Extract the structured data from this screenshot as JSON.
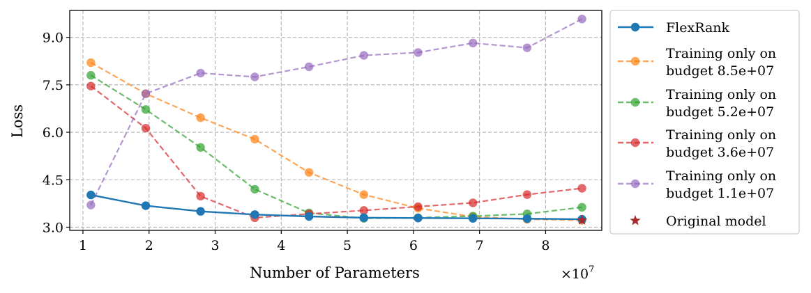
{
  "chart_data": {
    "type": "line",
    "xlabel": "Number of Parameters",
    "ylabel": "Loss",
    "x_multiplier_label": "×10^7",
    "x_multiplier_base": "×10",
    "x_multiplier_exp": "7",
    "xlim": [
      0.8,
      8.85
    ],
    "ylim": [
      2.9,
      9.85
    ],
    "xticks": [
      1,
      2,
      3,
      4,
      5,
      6,
      7,
      8
    ],
    "xtick_labels": [
      "1",
      "2",
      "3",
      "4",
      "5",
      "6",
      "7",
      "8"
    ],
    "yticks": [
      3.0,
      4.5,
      6.0,
      7.5,
      9.0
    ],
    "ytick_labels": [
      "3.0",
      "4.5",
      "6.0",
      "7.5",
      "9.0"
    ],
    "grid": true,
    "legend_position": "outside-right",
    "x": [
      1.12,
      1.95,
      2.78,
      3.6,
      4.42,
      5.25,
      6.07,
      6.9,
      7.72,
      8.55
    ],
    "series": [
      {
        "name": "FlexRank",
        "style": "solid",
        "color": "#1f77b4",
        "values": [
          4.02,
          3.68,
          3.5,
          3.4,
          3.34,
          3.3,
          3.29,
          3.28,
          3.27,
          3.25
        ]
      },
      {
        "name": "Training only on budget 8.5e+07",
        "name_lines": [
          "Training only on",
          "budget 8.5e+07"
        ],
        "style": "dashed",
        "color": "#ff7f0e",
        "values": [
          8.2,
          7.22,
          6.46,
          5.78,
          4.73,
          4.03,
          3.6,
          3.33,
          3.25,
          3.22
        ]
      },
      {
        "name": "Training only on budget 5.2e+07",
        "name_lines": [
          "Training only on",
          "budget 5.2e+07"
        ],
        "style": "dashed",
        "color": "#2ca02c",
        "values": [
          7.8,
          6.72,
          5.52,
          4.2,
          3.45,
          3.28,
          3.3,
          3.35,
          3.42,
          3.63
        ]
      },
      {
        "name": "Training only on budget 3.6e+07",
        "name_lines": [
          "Training only on",
          "budget 3.6e+07"
        ],
        "style": "dashed",
        "color": "#d62728",
        "values": [
          7.46,
          6.13,
          3.98,
          3.3,
          3.42,
          3.53,
          3.65,
          3.77,
          4.03,
          4.23
        ]
      },
      {
        "name": "Training only on budget 1.1e+07",
        "name_lines": [
          "Training only on",
          "budget 1.1e+07"
        ],
        "style": "dashed",
        "color": "#9467bd",
        "values": [
          3.7,
          7.22,
          7.87,
          7.75,
          8.07,
          8.43,
          8.52,
          8.82,
          8.67,
          9.58
        ]
      }
    ],
    "original_model": {
      "name": "Original model",
      "color": "#a52a2a",
      "marker": "star",
      "x": 8.55,
      "y": 3.22
    }
  }
}
